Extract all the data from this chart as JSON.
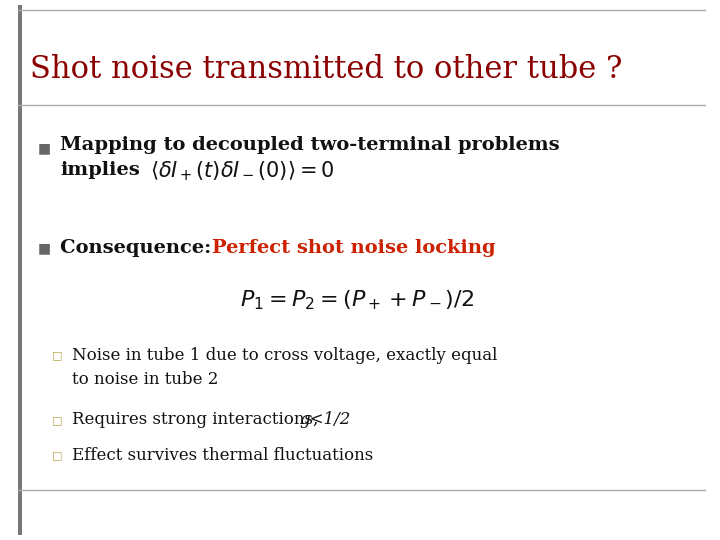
{
  "title": "Shot noise transmitted to other tube ?",
  "title_color": "#8B0000",
  "title_fontsize": 22,
  "background_color": "#ffffff",
  "bullet1_line1": "Mapping to decoupled two-terminal problems",
  "bullet1_line2": "implies",
  "bullet1_formula": "$\\langle \\delta I_+(t)\\delta I_-(0)\\rangle = 0$",
  "bullet2_plain": "Consequence: ",
  "bullet2_colored": "Perfect shot noise locking",
  "bullet2_colored_color": "#cc2200",
  "bullet2_formula": "$P_1 = P_2 = (P_+ + P_-)/2$",
  "sub1": "Noise in tube 1 due to cross voltage, exactly equal\nto noise in tube 2",
  "sub2_plain": "Requires strong interactions, ",
  "sub2_italic": "g<1/2",
  "sub3": "Effect survives thermal fluctuations",
  "text_color": "#111111",
  "font_family": "DejaVu Serif",
  "bullet_marker_color": "#666666",
  "sub_marker_color": "#b8a44a",
  "formula_color": "#111111",
  "left_bar_color": "#777777",
  "line_color": "#aaaaaa"
}
